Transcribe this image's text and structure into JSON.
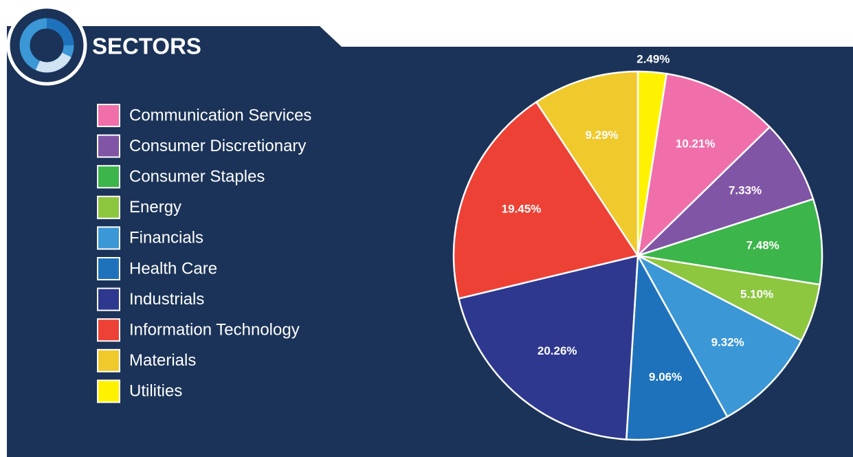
{
  "chart_data": {
    "type": "pie",
    "title": "SECTORS",
    "categories": [
      "Communication Services",
      "Consumer Discretionary",
      "Consumer Staples",
      "Energy",
      "Financials",
      "Health Care",
      "Industrials",
      "Information Technology",
      "Materials",
      "Utilities"
    ],
    "values": [
      10.21,
      7.33,
      7.48,
      5.1,
      9.32,
      9.06,
      20.26,
      19.45,
      9.29,
      2.49
    ],
    "value_labels": [
      "10.21%",
      "7.33%",
      "7.48%",
      "5.10%",
      "9.32%",
      "9.06%",
      "20.26%",
      "19.45%",
      "9.29%",
      "2.49%"
    ],
    "colors": [
      "#f06fab",
      "#8155a5",
      "#3cb54a",
      "#8dc63f",
      "#3b97d6",
      "#1e72bb",
      "#2e388f",
      "#ee4136",
      "#f0c92c",
      "#fff200"
    ],
    "legend": "left"
  }
}
